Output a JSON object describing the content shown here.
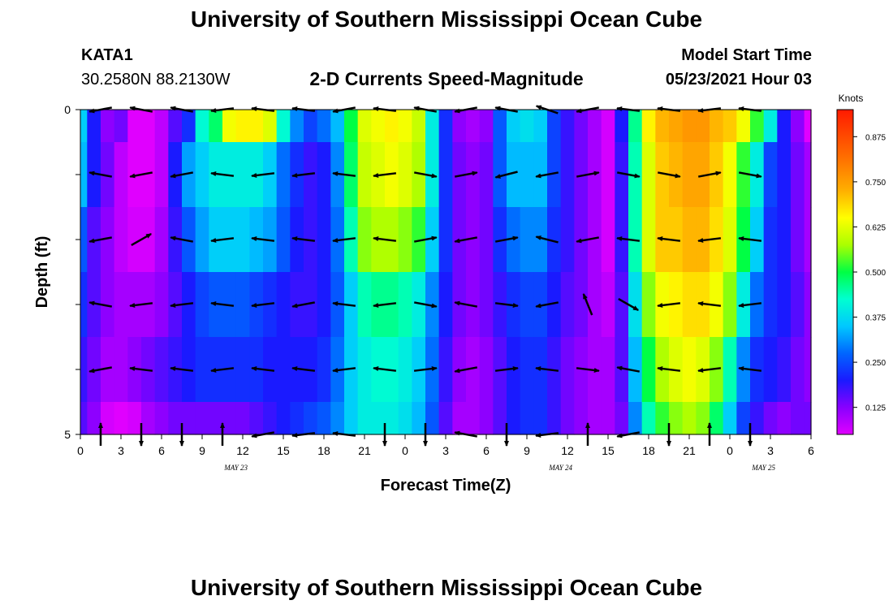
{
  "header": {
    "title": "University of Southern Mississippi Ocean Cube",
    "station": "KATA1",
    "coords": "30.2580N  88.2130W",
    "subtitle": "2-D Currents Speed-Magnitude",
    "model_label": "Model Start Time",
    "model_time": "05/23/2021 Hour 03"
  },
  "footer": {
    "title": "University of Southern Mississippi Ocean Cube"
  },
  "chart_data": {
    "type": "heatmap",
    "title": "2-D Currents Speed-Magnitude",
    "xlabel": "Forecast Time(Z)",
    "ylabel": "Depth (ft)",
    "xlim": [
      0,
      54
    ],
    "ylim": [
      5,
      0
    ],
    "x_ticks": [
      "0",
      "3",
      "6",
      "9",
      "12",
      "15",
      "18",
      "21",
      "0",
      "3",
      "6",
      "9",
      "12",
      "15",
      "18",
      "21",
      "0",
      "3",
      "6"
    ],
    "y_ticks": [
      "0",
      "5"
    ],
    "day_labels": [
      {
        "label": "MAY 23",
        "hour": 11.5
      },
      {
        "label": "MAY 24",
        "hour": 35.5
      },
      {
        "label": "MAY 25",
        "hour": 50.5
      }
    ],
    "depth_levels_ft": [
      0,
      1,
      2,
      3,
      4,
      5
    ],
    "hours": [
      0,
      1,
      2,
      3,
      4,
      5,
      6,
      7,
      8,
      9,
      10,
      11,
      12,
      13,
      14,
      15,
      16,
      17,
      18,
      19,
      20,
      21,
      22,
      23,
      24,
      25,
      26,
      27,
      28,
      29,
      30,
      31,
      32,
      33,
      34,
      35,
      36,
      37,
      38,
      39,
      40,
      41,
      42,
      43,
      44,
      45,
      46,
      47,
      48,
      49,
      50,
      51,
      52,
      53,
      54
    ],
    "speed_knots": [
      [
        0.36,
        0.2,
        0.12,
        0.14,
        0.04,
        0.04,
        0.08,
        0.16,
        0.22,
        0.42,
        0.48,
        0.64,
        0.66,
        0.66,
        0.62,
        0.42,
        0.3,
        0.24,
        0.28,
        0.34,
        0.5,
        0.62,
        0.64,
        0.66,
        0.64,
        0.6,
        0.4,
        0.22,
        0.12,
        0.1,
        0.12,
        0.26,
        0.36,
        0.38,
        0.36,
        0.24,
        0.18,
        0.14,
        0.1,
        0.06,
        0.2,
        0.46,
        0.66,
        0.72,
        0.74,
        0.76,
        0.76,
        0.72,
        0.7,
        0.64,
        0.52,
        0.4,
        0.2,
        0.12,
        0.05
      ],
      [
        0.34,
        0.2,
        0.14,
        0.08,
        0.04,
        0.04,
        0.08,
        0.2,
        0.32,
        0.36,
        0.4,
        0.4,
        0.4,
        0.4,
        0.36,
        0.28,
        0.22,
        0.18,
        0.2,
        0.3,
        0.48,
        0.6,
        0.62,
        0.64,
        0.62,
        0.58,
        0.4,
        0.22,
        0.14,
        0.12,
        0.14,
        0.26,
        0.34,
        0.34,
        0.34,
        0.24,
        0.18,
        0.14,
        0.1,
        0.06,
        0.18,
        0.44,
        0.62,
        0.7,
        0.72,
        0.74,
        0.74,
        0.7,
        0.64,
        0.52,
        0.4,
        0.24,
        0.2,
        0.14,
        0.1
      ],
      [
        0.26,
        0.16,
        0.12,
        0.08,
        0.06,
        0.06,
        0.1,
        0.18,
        0.26,
        0.32,
        0.36,
        0.36,
        0.36,
        0.34,
        0.32,
        0.26,
        0.2,
        0.18,
        0.2,
        0.28,
        0.44,
        0.56,
        0.58,
        0.58,
        0.56,
        0.52,
        0.36,
        0.22,
        0.14,
        0.12,
        0.14,
        0.22,
        0.28,
        0.3,
        0.3,
        0.22,
        0.18,
        0.14,
        0.1,
        0.06,
        0.18,
        0.44,
        0.62,
        0.7,
        0.7,
        0.72,
        0.72,
        0.68,
        0.62,
        0.5,
        0.36,
        0.22,
        0.2,
        0.14,
        0.1
      ],
      [
        0.22,
        0.16,
        0.12,
        0.1,
        0.1,
        0.1,
        0.12,
        0.16,
        0.2,
        0.24,
        0.26,
        0.26,
        0.26,
        0.24,
        0.22,
        0.2,
        0.18,
        0.18,
        0.2,
        0.26,
        0.36,
        0.44,
        0.46,
        0.46,
        0.44,
        0.4,
        0.3,
        0.2,
        0.14,
        0.12,
        0.14,
        0.18,
        0.22,
        0.24,
        0.24,
        0.2,
        0.16,
        0.14,
        0.1,
        0.08,
        0.16,
        0.38,
        0.56,
        0.64,
        0.66,
        0.68,
        0.68,
        0.64,
        0.56,
        0.4,
        0.28,
        0.22,
        0.2,
        0.16,
        0.12
      ],
      [
        0.18,
        0.14,
        0.1,
        0.1,
        0.12,
        0.14,
        0.16,
        0.18,
        0.2,
        0.22,
        0.22,
        0.22,
        0.22,
        0.22,
        0.2,
        0.2,
        0.2,
        0.2,
        0.22,
        0.28,
        0.36,
        0.4,
        0.42,
        0.42,
        0.4,
        0.36,
        0.28,
        0.18,
        0.12,
        0.1,
        0.12,
        0.16,
        0.2,
        0.22,
        0.22,
        0.18,
        0.14,
        0.12,
        0.1,
        0.1,
        0.16,
        0.34,
        0.5,
        0.58,
        0.62,
        0.64,
        0.62,
        0.56,
        0.44,
        0.3,
        0.22,
        0.2,
        0.18,
        0.14,
        0.12
      ],
      [
        0.16,
        0.12,
        0.06,
        0.04,
        0.06,
        0.1,
        0.12,
        0.14,
        0.14,
        0.14,
        0.14,
        0.14,
        0.14,
        0.16,
        0.18,
        0.2,
        0.22,
        0.24,
        0.26,
        0.3,
        0.36,
        0.4,
        0.4,
        0.4,
        0.38,
        0.34,
        0.26,
        0.16,
        0.1,
        0.1,
        0.12,
        0.16,
        0.2,
        0.22,
        0.22,
        0.18,
        0.14,
        0.12,
        0.1,
        0.1,
        0.14,
        0.3,
        0.44,
        0.52,
        0.56,
        0.58,
        0.56,
        0.48,
        0.36,
        0.24,
        0.18,
        0.14,
        0.12,
        0.14,
        0.14
      ]
    ],
    "vector_hours": [
      1.5,
      4.5,
      7.5,
      10.5,
      13.5,
      16.5,
      19.5,
      22.5,
      25.5,
      28.5,
      31.5,
      34.5,
      37.5,
      40.5,
      43.5,
      46.5,
      49.5
    ],
    "vector_depths_ft": [
      0,
      1,
      2,
      3,
      4,
      5
    ],
    "current_u": [
      [
        -0.8,
        -0.8,
        -0.8,
        -0.9,
        -0.9,
        -0.9,
        -0.8,
        -0.9,
        -0.8,
        -0.8,
        -0.8,
        -0.6,
        -0.8,
        -0.9,
        -0.9,
        -0.9,
        -0.9
      ],
      [
        -0.8,
        -0.8,
        -0.8,
        -0.9,
        -0.9,
        -0.9,
        -0.9,
        -0.9,
        0.8,
        0.8,
        -0.7,
        -0.8,
        0.8,
        0.8,
        0.8,
        0.8,
        0.8
      ],
      [
        -0.8,
        0.4,
        -0.8,
        -0.9,
        -0.9,
        -0.9,
        -0.9,
        -0.9,
        0.8,
        -0.8,
        0.8,
        -0.7,
        -0.8,
        -0.9,
        -0.9,
        -0.9,
        -0.9
      ],
      [
        -0.8,
        -0.9,
        -0.9,
        -0.9,
        -0.9,
        -0.8,
        -0.9,
        -0.9,
        0.8,
        -0.8,
        0.9,
        -0.8,
        -0.1,
        0.4,
        -0.9,
        -0.9,
        -0.9
      ],
      [
        -0.8,
        -0.9,
        -0.9,
        -0.9,
        -0.9,
        -0.9,
        -0.9,
        -0.9,
        0.9,
        -0.8,
        0.9,
        -0.9,
        0.9,
        -0.8,
        -0.9,
        -0.9,
        -0.9
      ],
      [
        0.0,
        0.0,
        0.0,
        0.0,
        -0.8,
        -0.9,
        -0.9,
        0.0,
        0.0,
        -0.8,
        0.0,
        -0.9,
        0.0,
        -0.8,
        0.0,
        0.0,
        0.0
      ]
    ],
    "colorbar": {
      "label": "Knots",
      "min": 0.05,
      "max": 0.95,
      "ticks": [
        "0.125",
        "0.250",
        "0.375",
        "0.500",
        "0.625",
        "0.750",
        "0.875"
      ],
      "tick_values": [
        0.125,
        0.25,
        0.375,
        0.5,
        0.625,
        0.75,
        0.875
      ],
      "colors": [
        "#e000ff",
        "#8800ff",
        "#1a1aff",
        "#0066ff",
        "#00c8ff",
        "#00ffd0",
        "#00ff44",
        "#aaff00",
        "#ffff00",
        "#ffb000",
        "#ff7a00",
        "#ff4a00",
        "#ff1a00"
      ]
    }
  }
}
